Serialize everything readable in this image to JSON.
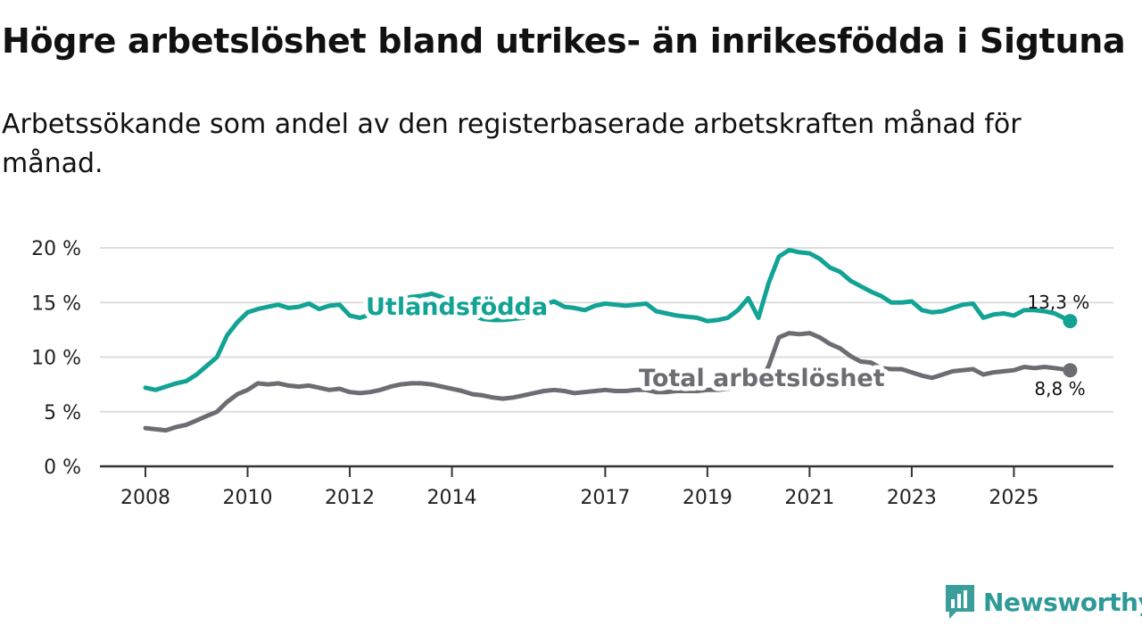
{
  "title": "Högre arbetslöshet bland utrikes- än inrikesfödda i Sigtuna",
  "subtitle": "Arbetssökande som andel av den registerbaserade arbetskraften månad för månad.",
  "brand": "Newsworthy",
  "colors": {
    "foreign_born": "#12a394",
    "total": "#6e6c73",
    "grid": "#dddddd",
    "axis": "#333333",
    "brand": "#2e9a98"
  },
  "chart_data": {
    "type": "line",
    "title": "Högre arbetslöshet bland utrikes- än inrikesfödda i Sigtuna",
    "subtitle": "Arbetssökande som andel av den registerbaserade arbetskraften månad för månad.",
    "xlabel": "",
    "ylabel": "",
    "xlim": [
      2008.0,
      2026.25
    ],
    "ylim": [
      0,
      20
    ],
    "grid": true,
    "legend": "inline labels",
    "x_ticks": [
      {
        "value": 2008,
        "label": "2008"
      },
      {
        "value": 2010,
        "label": "2010"
      },
      {
        "value": 2012,
        "label": "2012"
      },
      {
        "value": 2014,
        "label": "2014"
      },
      {
        "value": 2017,
        "label": "2017"
      },
      {
        "value": 2019,
        "label": "2019"
      },
      {
        "value": 2021,
        "label": "2021"
      },
      {
        "value": 2023,
        "label": "2023"
      },
      {
        "value": 2025,
        "label": "2025"
      }
    ],
    "y_ticks": [
      {
        "value": 0,
        "label": "0 %"
      },
      {
        "value": 5,
        "label": "5 %"
      },
      {
        "value": 10,
        "label": "10 %"
      },
      {
        "value": 15,
        "label": "15 %"
      },
      {
        "value": 20,
        "label": "20 %"
      }
    ],
    "series": [
      {
        "name": "Utlandsfödda",
        "label": "Utlandsfödda",
        "end_label": "13,3 %",
        "color": "#12a394",
        "x": [
          2008.0,
          2008.2,
          2008.4,
          2008.6,
          2008.8,
          2009.0,
          2009.2,
          2009.4,
          2009.6,
          2009.8,
          2010.0,
          2010.2,
          2010.4,
          2010.6,
          2010.8,
          2011.0,
          2011.2,
          2011.4,
          2011.6,
          2011.8,
          2012.0,
          2012.2,
          2012.4,
          2012.6,
          2012.8,
          2013.0,
          2013.2,
          2013.4,
          2013.6,
          2013.8,
          2014.0,
          2014.2,
          2014.4,
          2014.6,
          2014.8,
          2015.0,
          2015.2,
          2015.4,
          2015.6,
          2015.8,
          2016.0,
          2016.2,
          2016.4,
          2016.6,
          2016.8,
          2017.0,
          2017.2,
          2017.4,
          2017.6,
          2017.8,
          2018.0,
          2018.2,
          2018.4,
          2018.6,
          2018.8,
          2019.0,
          2019.2,
          2019.4,
          2019.6,
          2019.8,
          2020.0,
          2020.2,
          2020.4,
          2020.6,
          2020.8,
          2021.0,
          2021.2,
          2021.4,
          2021.6,
          2021.8,
          2022.0,
          2022.2,
          2022.4,
          2022.6,
          2022.8,
          2023.0,
          2023.2,
          2023.4,
          2023.6,
          2023.8,
          2024.0,
          2024.2,
          2024.4,
          2024.6,
          2024.8,
          2025.0,
          2025.2,
          2025.4,
          2025.6,
          2025.8,
          2026.1
        ],
        "values": [
          7.2,
          7.0,
          7.3,
          7.6,
          7.8,
          8.4,
          9.2,
          10.0,
          12.0,
          13.2,
          14.1,
          14.4,
          14.6,
          14.8,
          14.5,
          14.6,
          14.9,
          14.4,
          14.7,
          14.8,
          13.8,
          13.6,
          13.9,
          14.4,
          15.0,
          15.3,
          15.5,
          15.6,
          15.8,
          15.5,
          14.9,
          14.3,
          13.8,
          13.5,
          13.4,
          13.4,
          13.5,
          13.6,
          14.2,
          14.8,
          15.1,
          14.6,
          14.5,
          14.3,
          14.7,
          14.9,
          14.8,
          14.7,
          14.8,
          14.9,
          14.2,
          14.0,
          13.8,
          13.7,
          13.6,
          13.3,
          13.4,
          13.6,
          14.3,
          15.4,
          13.6,
          16.8,
          19.2,
          19.8,
          19.6,
          19.5,
          19.0,
          18.2,
          17.8,
          17.0,
          16.5,
          16.0,
          15.6,
          15.0,
          15.0,
          15.1,
          14.3,
          14.1,
          14.2,
          14.5,
          14.8,
          14.9,
          13.6,
          13.9,
          14.0,
          13.8,
          14.3,
          14.3,
          14.2,
          14.0,
          13.3
        ]
      },
      {
        "name": "Total arbetslöshet",
        "label": "Total arbetslöshet",
        "end_label": "8,8 %",
        "color": "#6e6c73",
        "x": [
          2008.0,
          2008.2,
          2008.4,
          2008.6,
          2008.8,
          2009.0,
          2009.2,
          2009.4,
          2009.6,
          2009.8,
          2010.0,
          2010.2,
          2010.4,
          2010.6,
          2010.8,
          2011.0,
          2011.2,
          2011.4,
          2011.6,
          2011.8,
          2012.0,
          2012.2,
          2012.4,
          2012.6,
          2012.8,
          2013.0,
          2013.2,
          2013.4,
          2013.6,
          2013.8,
          2014.0,
          2014.2,
          2014.4,
          2014.6,
          2014.8,
          2015.0,
          2015.2,
          2015.4,
          2015.6,
          2015.8,
          2016.0,
          2016.2,
          2016.4,
          2016.6,
          2016.8,
          2017.0,
          2017.2,
          2017.4,
          2017.6,
          2017.8,
          2018.0,
          2018.2,
          2018.4,
          2018.6,
          2018.8,
          2019.0,
          2019.2,
          2019.4,
          2019.6,
          2019.8,
          2020.0,
          2020.2,
          2020.4,
          2020.6,
          2020.8,
          2021.0,
          2021.2,
          2021.4,
          2021.6,
          2021.8,
          2022.0,
          2022.2,
          2022.4,
          2022.6,
          2022.8,
          2023.0,
          2023.2,
          2023.4,
          2023.6,
          2023.8,
          2024.0,
          2024.2,
          2024.4,
          2024.6,
          2024.8,
          2025.0,
          2025.2,
          2025.4,
          2025.6,
          2025.8,
          2026.1
        ],
        "values": [
          3.5,
          3.4,
          3.3,
          3.6,
          3.8,
          4.2,
          4.6,
          5.0,
          5.9,
          6.6,
          7.0,
          7.6,
          7.5,
          7.6,
          7.4,
          7.3,
          7.4,
          7.2,
          7.0,
          7.1,
          6.8,
          6.7,
          6.8,
          7.0,
          7.3,
          7.5,
          7.6,
          7.6,
          7.5,
          7.3,
          7.1,
          6.9,
          6.6,
          6.5,
          6.3,
          6.2,
          6.3,
          6.5,
          6.7,
          6.9,
          7.0,
          6.9,
          6.7,
          6.8,
          6.9,
          7.0,
          6.9,
          6.9,
          7.0,
          7.0,
          6.8,
          6.8,
          6.9,
          6.9,
          6.9,
          7.0,
          7.0,
          7.1,
          7.3,
          7.5,
          7.4,
          9.2,
          11.8,
          12.2,
          12.1,
          12.2,
          11.8,
          11.2,
          10.8,
          10.1,
          9.6,
          9.5,
          9.0,
          8.9,
          8.9,
          8.6,
          8.3,
          8.1,
          8.4,
          8.7,
          8.8,
          8.9,
          8.4,
          8.6,
          8.7,
          8.8,
          9.1,
          9.0,
          9.1,
          9.0,
          8.8
        ]
      }
    ]
  }
}
